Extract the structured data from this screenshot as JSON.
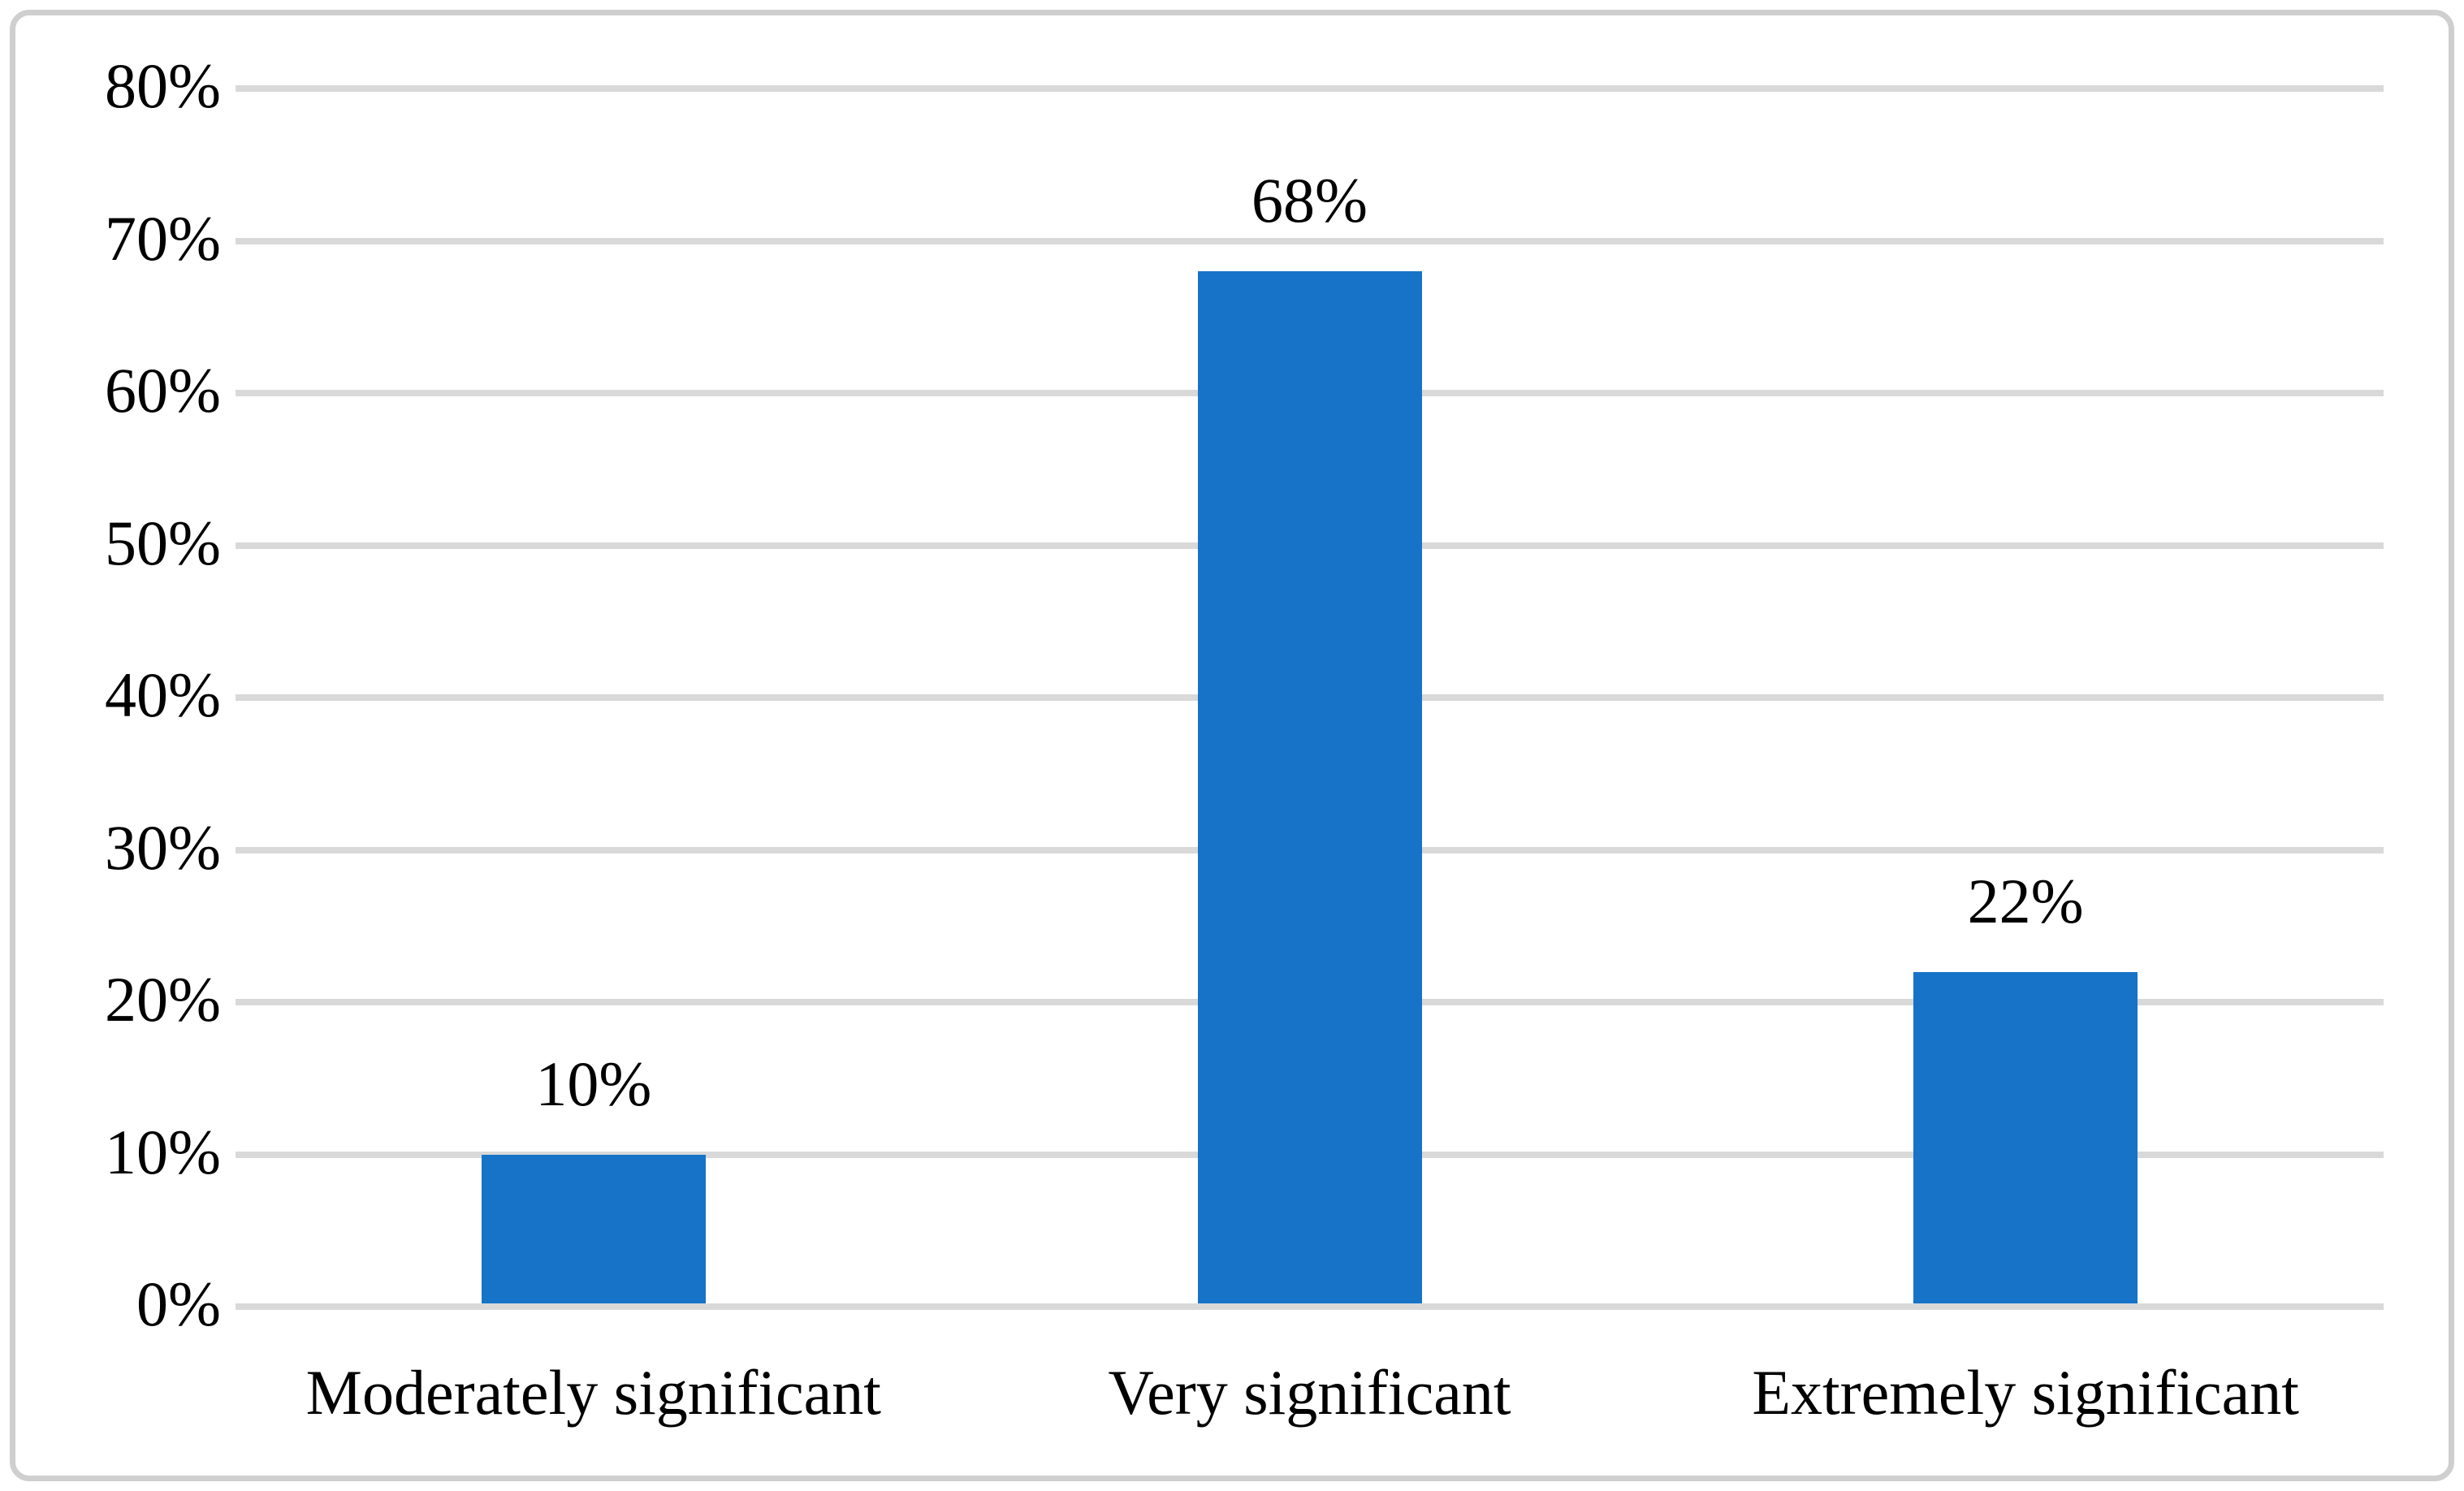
{
  "figure": {
    "background_color": "#ffffff",
    "border_color": "#cfcfcf",
    "text_color": "#000000"
  },
  "chart_data": {
    "type": "bar",
    "categories": [
      "Moderately significant",
      "Very significant",
      "Extremely significant"
    ],
    "values": [
      10,
      68,
      22
    ],
    "data_labels": [
      "10%",
      "68%",
      "22%"
    ],
    "title": "",
    "xlabel": "",
    "ylabel": "",
    "ylim": [
      0,
      80
    ],
    "ytick_step": 10,
    "ytick_labels": [
      "0%",
      "10%",
      "20%",
      "30%",
      "40%",
      "50%",
      "60%",
      "70%",
      "80%"
    ],
    "grid": true,
    "legend_position": "none",
    "bar_color": "#1673c8",
    "gridline_color": "#d9d9d9",
    "axis_line_color": "#d9d9d9"
  }
}
